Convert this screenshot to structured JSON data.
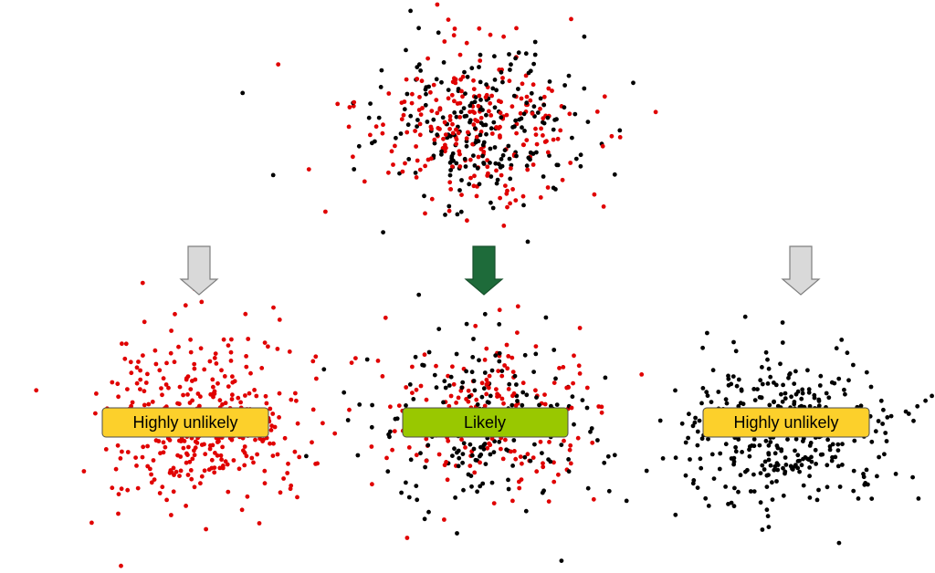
{
  "panels": [
    {
      "label": "Highly unlikely"
    },
    {
      "label": "Likely"
    },
    {
      "label": "Highly unlikely"
    }
  ]
}
